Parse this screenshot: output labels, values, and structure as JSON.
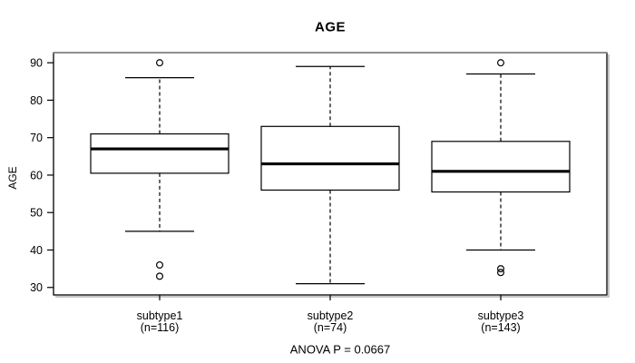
{
  "chart_data": {
    "type": "boxplot",
    "title": "AGE",
    "ylabel": "AGE",
    "xlabel": "",
    "annotation": "ANOVA P = 0.0667",
    "legend": null,
    "grid": false,
    "y_axis": {
      "ticks": [
        30,
        40,
        50,
        60,
        70,
        80,
        90
      ],
      "range_approx": [
        28,
        92.7
      ]
    },
    "groups": [
      {
        "label": "subtype1",
        "sublabel": "(n=116)",
        "n": 116,
        "whisker_low": 45,
        "q1": 60.5,
        "median": 67,
        "q3": 71,
        "whisker_high": 86,
        "outliers": [
          90,
          36,
          33
        ]
      },
      {
        "label": "subtype2",
        "sublabel": "(n=74)",
        "n": 74,
        "whisker_low": 31,
        "q1": 56,
        "median": 63,
        "q3": 73,
        "whisker_high": 89,
        "outliers": []
      },
      {
        "label": "subtype3",
        "sublabel": "(n=143)",
        "n": 143,
        "whisker_low": 40,
        "q1": 55.5,
        "median": 61,
        "q3": 69,
        "whisker_high": 87,
        "outliers": [
          90,
          35,
          34
        ]
      }
    ],
    "colors": {
      "stroke": "#000000",
      "median": "#000000",
      "box_fill": "#ffffff",
      "frame_top": "#828282",
      "frame_shadow": "#b4b4b4",
      "background": "#ffffff"
    }
  }
}
